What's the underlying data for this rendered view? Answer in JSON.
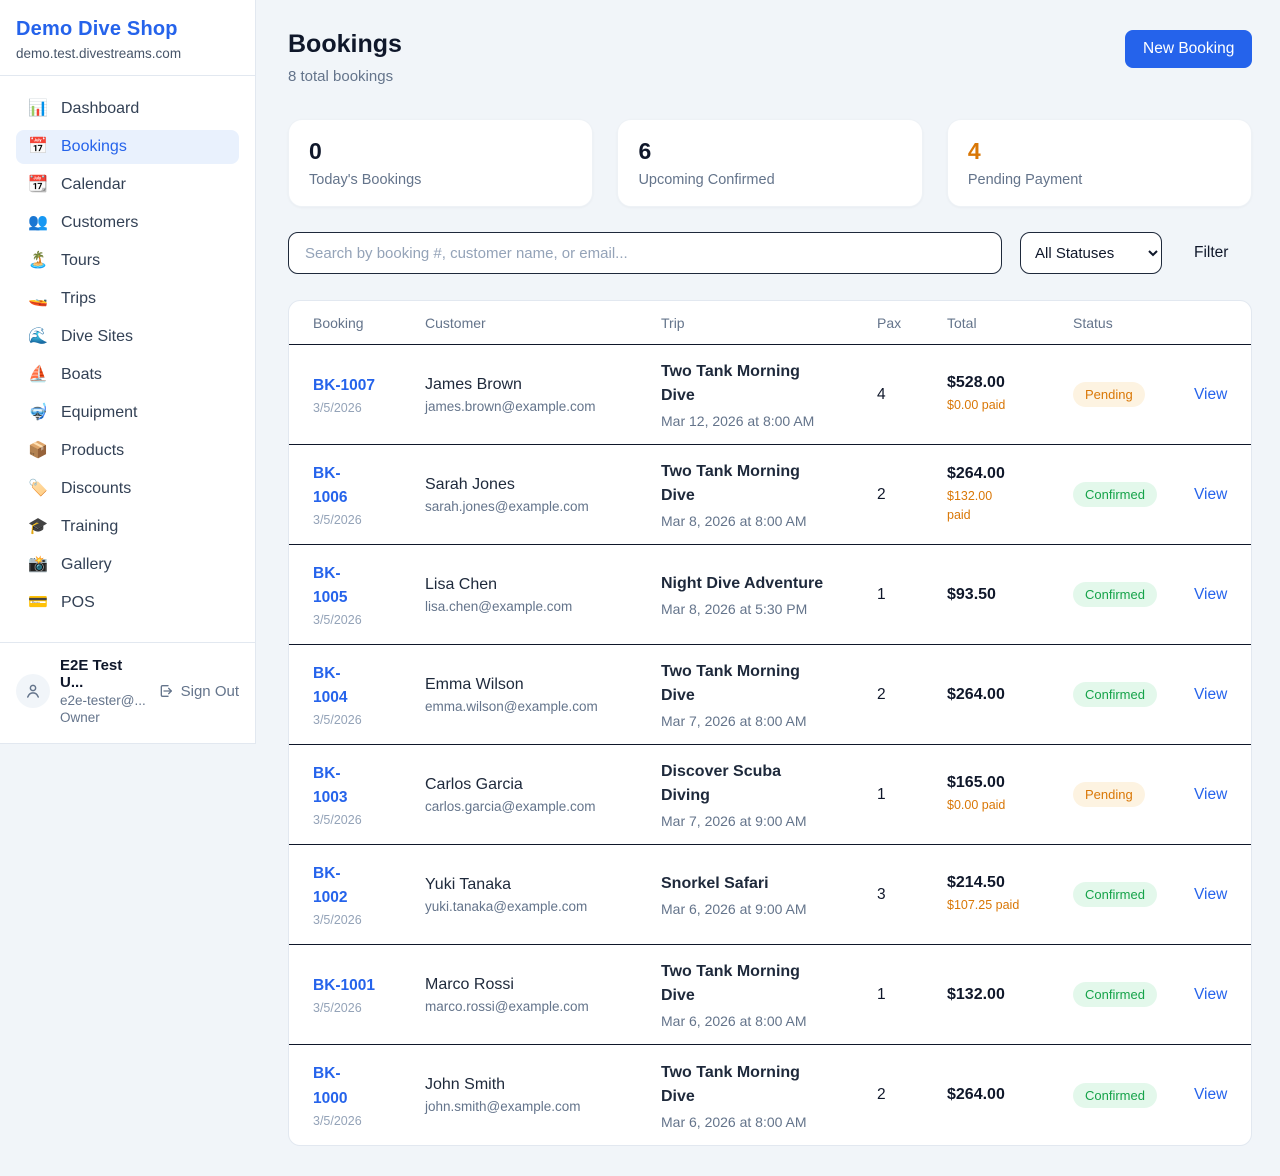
{
  "colors": {
    "brand_blue": "#2563eb",
    "title_dark": "#0f172a",
    "muted_gray": "#64748b",
    "pending_text": "#d97706",
    "pending_bg": "#fdf3e1",
    "confirmed_text": "#16a34a",
    "confirmed_bg": "#e3f8eb",
    "paid_orange": "#d97706",
    "page_bg": "#f1f5f9",
    "active_nav_bg": "#e9f1fd"
  },
  "sidebar": {
    "brand": {
      "name": "Demo Dive Shop",
      "domain": "demo.test.divestreams.com"
    },
    "nav": [
      {
        "label": "Dashboard",
        "icon": "📊",
        "active": false
      },
      {
        "label": "Bookings",
        "icon": "📅",
        "active": true
      },
      {
        "label": "Calendar",
        "icon": "📆",
        "active": false
      },
      {
        "label": "Customers",
        "icon": "👥",
        "active": false
      },
      {
        "label": "Tours",
        "icon": "🏝️",
        "active": false
      },
      {
        "label": "Trips",
        "icon": "🚤",
        "active": false
      },
      {
        "label": "Dive Sites",
        "icon": "🌊",
        "active": false
      },
      {
        "label": "Boats",
        "icon": "⛵",
        "active": false
      },
      {
        "label": "Equipment",
        "icon": "🤿",
        "active": false
      },
      {
        "label": "Products",
        "icon": "📦",
        "active": false
      },
      {
        "label": "Discounts",
        "icon": "🏷️",
        "active": false
      },
      {
        "label": "Training",
        "icon": "🎓",
        "active": false
      },
      {
        "label": "Gallery",
        "icon": "📸",
        "active": false
      },
      {
        "label": "POS",
        "icon": "💳",
        "active": false
      }
    ],
    "user": {
      "name": "E2E Test U...",
      "email": "e2e-tester@...",
      "role": "Owner",
      "sign_out": "Sign Out"
    }
  },
  "header": {
    "title": "Bookings",
    "subtitle": "8 total bookings",
    "new_booking_label": "New Booking"
  },
  "stats": [
    {
      "value": "0",
      "label": "Today's Bookings",
      "accent": "dark"
    },
    {
      "value": "6",
      "label": "Upcoming Confirmed",
      "accent": "dark"
    },
    {
      "value": "4",
      "label": "Pending Payment",
      "accent": "orange"
    }
  ],
  "filters": {
    "search_placeholder": "Search by booking #, customer name, or email...",
    "status_selected": "All Statuses",
    "filter_label": "Filter"
  },
  "table": {
    "headers": [
      "Booking",
      "Customer",
      "Trip",
      "Pax",
      "Total",
      "Status"
    ],
    "view_label": "View",
    "rows": [
      {
        "id": "BK-1007",
        "date": "3/5/2026",
        "customer": "James Brown",
        "email": "james.brown@example.com",
        "trip": "Two Tank Morning\nDive",
        "trip_time": "Mar 12, 2026 at 8:00 AM",
        "pax": "4",
        "total": "$528.00",
        "paid": "$0.00 paid",
        "status": "Pending",
        "status_type": "pending"
      },
      {
        "id": "BK-\n1006",
        "date": "3/5/2026",
        "customer": "Sarah Jones",
        "email": "sarah.jones@example.com",
        "trip": "Two Tank Morning\nDive",
        "trip_time": "Mar 8, 2026 at 8:00 AM",
        "pax": "2",
        "total": "$264.00",
        "paid": "$132.00\npaid",
        "status": "Confirmed",
        "status_type": "confirmed"
      },
      {
        "id": "BK-\n1005",
        "date": "3/5/2026",
        "customer": "Lisa Chen",
        "email": "lisa.chen@example.com",
        "trip": "Night Dive Adventure",
        "trip_time": "Mar 8, 2026 at 5:30 PM",
        "pax": "1",
        "total": "$93.50",
        "paid": "",
        "status": "Confirmed",
        "status_type": "confirmed"
      },
      {
        "id": "BK-\n1004",
        "date": "3/5/2026",
        "customer": "Emma Wilson",
        "email": "emma.wilson@example.com",
        "trip": "Two Tank Morning\nDive",
        "trip_time": "Mar 7, 2026 at 8:00 AM",
        "pax": "2",
        "total": "$264.00",
        "paid": "",
        "status": "Confirmed",
        "status_type": "confirmed"
      },
      {
        "id": "BK-\n1003",
        "date": "3/5/2026",
        "customer": "Carlos Garcia",
        "email": "carlos.garcia@example.com",
        "trip": "Discover Scuba\nDiving",
        "trip_time": "Mar 7, 2026 at 9:00 AM",
        "pax": "1",
        "total": "$165.00",
        "paid": "$0.00 paid",
        "status": "Pending",
        "status_type": "pending"
      },
      {
        "id": "BK-\n1002",
        "date": "3/5/2026",
        "customer": "Yuki Tanaka",
        "email": "yuki.tanaka@example.com",
        "trip": "Snorkel Safari",
        "trip_time": "Mar 6, 2026 at 9:00 AM",
        "pax": "3",
        "total": "$214.50",
        "paid": "$107.25 paid",
        "status": "Confirmed",
        "status_type": "confirmed"
      },
      {
        "id": "BK-1001",
        "date": "3/5/2026",
        "customer": "Marco Rossi",
        "email": "marco.rossi@example.com",
        "trip": "Two Tank Morning\nDive",
        "trip_time": "Mar 6, 2026 at 8:00 AM",
        "pax": "1",
        "total": "$132.00",
        "paid": "",
        "status": "Confirmed",
        "status_type": "confirmed"
      },
      {
        "id": "BK-\n1000",
        "date": "3/5/2026",
        "customer": "John Smith",
        "email": "john.smith@example.com",
        "trip": "Two Tank Morning\nDive",
        "trip_time": "Mar 6, 2026 at 8:00 AM",
        "pax": "2",
        "total": "$264.00",
        "paid": "",
        "status": "Confirmed",
        "status_type": "confirmed"
      }
    ]
  }
}
